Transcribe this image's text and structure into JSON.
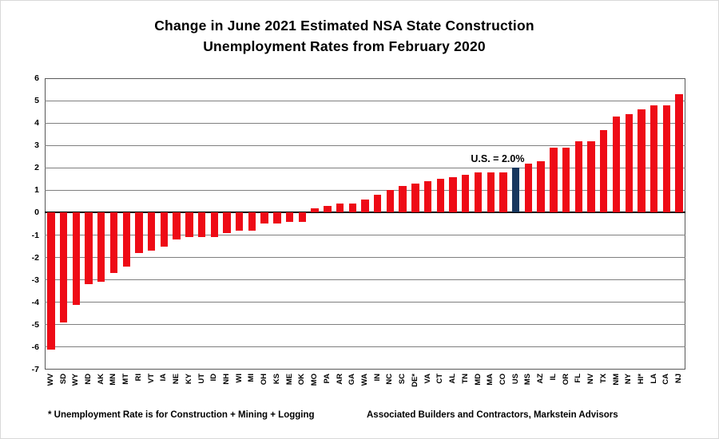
{
  "title": {
    "line1": "Change in June 2021 Estimated NSA State Construction",
    "line2": "Unemployment Rates from February 2020"
  },
  "annotation": {
    "text": "U.S. = 2.0%",
    "anchor": "US"
  },
  "footnotes": {
    "left": "* Unemployment Rate is for Construction + Mining + Logging",
    "right": "Associated Builders and Contractors, Markstein Advisors"
  },
  "colors": {
    "bar": "#ee0b16",
    "highlight_bar": "#17375e",
    "gridline": "#7f7f7f",
    "zero_line": "#000000",
    "plot_border": "#595959",
    "text": "#000000"
  },
  "chart_data": {
    "type": "bar",
    "title": "Change in June 2021 Estimated NSA State Construction Unemployment Rates from February 2020",
    "xlabel": "",
    "ylabel": "",
    "ylim": [
      -7,
      6
    ],
    "ytick_step": 1,
    "yticks": [
      6,
      5,
      4,
      3,
      2,
      1,
      0,
      -1,
      -2,
      -3,
      -4,
      -5,
      -6,
      -7
    ],
    "grid": true,
    "legend": "none",
    "highlight_category": "US",
    "annotation": "U.S. = 2.0%",
    "categories": [
      "WV",
      "SD",
      "WY",
      "ND",
      "AK",
      "MN",
      "MT",
      "RI",
      "VT",
      "IA",
      "NE",
      "KY",
      "UT",
      "ID",
      "NH",
      "WI",
      "MI",
      "OH",
      "KS",
      "ME",
      "OK",
      "MO",
      "PA",
      "AR",
      "GA",
      "WA",
      "IN",
      "NC",
      "SC",
      "DE*",
      "VA",
      "CT",
      "AL",
      "TN",
      "MD",
      "MA",
      "CO",
      "US",
      "MS",
      "AZ",
      "IL",
      "OR",
      "FL",
      "NV",
      "TX",
      "NM",
      "NY",
      "HI*",
      "LA",
      "CA",
      "NJ"
    ],
    "values": [
      -6.1,
      -4.9,
      -4.1,
      -3.2,
      -3.1,
      -2.7,
      -2.4,
      -1.8,
      -1.7,
      -1.5,
      -1.2,
      -1.1,
      -1.1,
      -1.1,
      -0.9,
      -0.8,
      -0.8,
      -0.5,
      -0.5,
      -0.4,
      -0.4,
      0.2,
      0.3,
      0.4,
      0.4,
      0.6,
      0.8,
      1.0,
      1.2,
      1.3,
      1.4,
      1.5,
      1.6,
      1.7,
      1.8,
      1.8,
      1.8,
      2.0,
      2.2,
      2.3,
      2.9,
      2.9,
      3.2,
      3.2,
      3.7,
      4.3,
      4.4,
      4.6,
      4.8,
      4.8,
      5.3
    ]
  }
}
